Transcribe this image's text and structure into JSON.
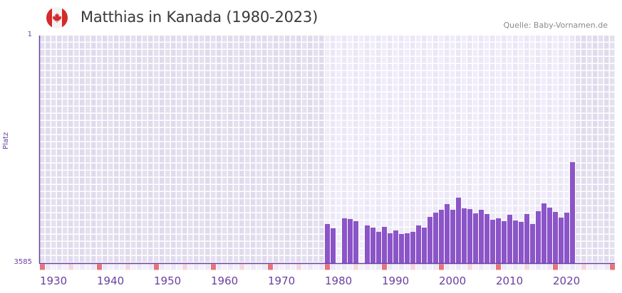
{
  "header": {
    "title": "Matthias in Kanada (1980-2023)",
    "source": "Quelle: Baby-Vornamen.de",
    "flag_icon": "canada-flag-icon"
  },
  "colors": {
    "bar": "#8b55c8",
    "axis": "#6a3fa0",
    "decade_marker": "#e8727a",
    "half_decade_marker": "#f5d6df",
    "bg_inactive": "#e4e0ef",
    "bg_active": "#f0edf9"
  },
  "chart_data": {
    "type": "bar",
    "title": "Matthias in Kanada (1980-2023)",
    "xlabel": "",
    "ylabel": "Platz",
    "y_inverted": true,
    "ylim": [
      1,
      3585
    ],
    "y_tick_labels": [
      "1",
      "3585"
    ],
    "x_range": [
      1930,
      2030
    ],
    "x_tick_labels": [
      "1930",
      "1940",
      "1950",
      "1960",
      "1970",
      "1980",
      "1990",
      "2000",
      "2010",
      "2020"
    ],
    "grid": true,
    "legend": null,
    "categories": [
      1980,
      1981,
      1982,
      1983,
      1984,
      1985,
      1986,
      1987,
      1988,
      1989,
      1990,
      1991,
      1992,
      1993,
      1994,
      1995,
      1996,
      1997,
      1998,
      1999,
      2000,
      2001,
      2002,
      2003,
      2004,
      2005,
      2006,
      2007,
      2008,
      2009,
      2010,
      2011,
      2012,
      2013,
      2014,
      2015,
      2016,
      2017,
      2018,
      2019,
      2020,
      2021,
      2022,
      2023
    ],
    "values": [
      2969,
      3036,
      null,
      2879,
      2890,
      2924,
      null,
      2991,
      3025,
      3092,
      3014,
      3115,
      3070,
      3126,
      3115,
      3092,
      2991,
      3025,
      2857,
      2790,
      2745,
      2655,
      2745,
      2554,
      2722,
      2734,
      2801,
      2745,
      2812,
      2902,
      2879,
      2924,
      2823,
      2913,
      2935,
      2812,
      2969,
      2767,
      2644,
      2711,
      2779,
      2868,
      2790,
      1995
    ]
  }
}
